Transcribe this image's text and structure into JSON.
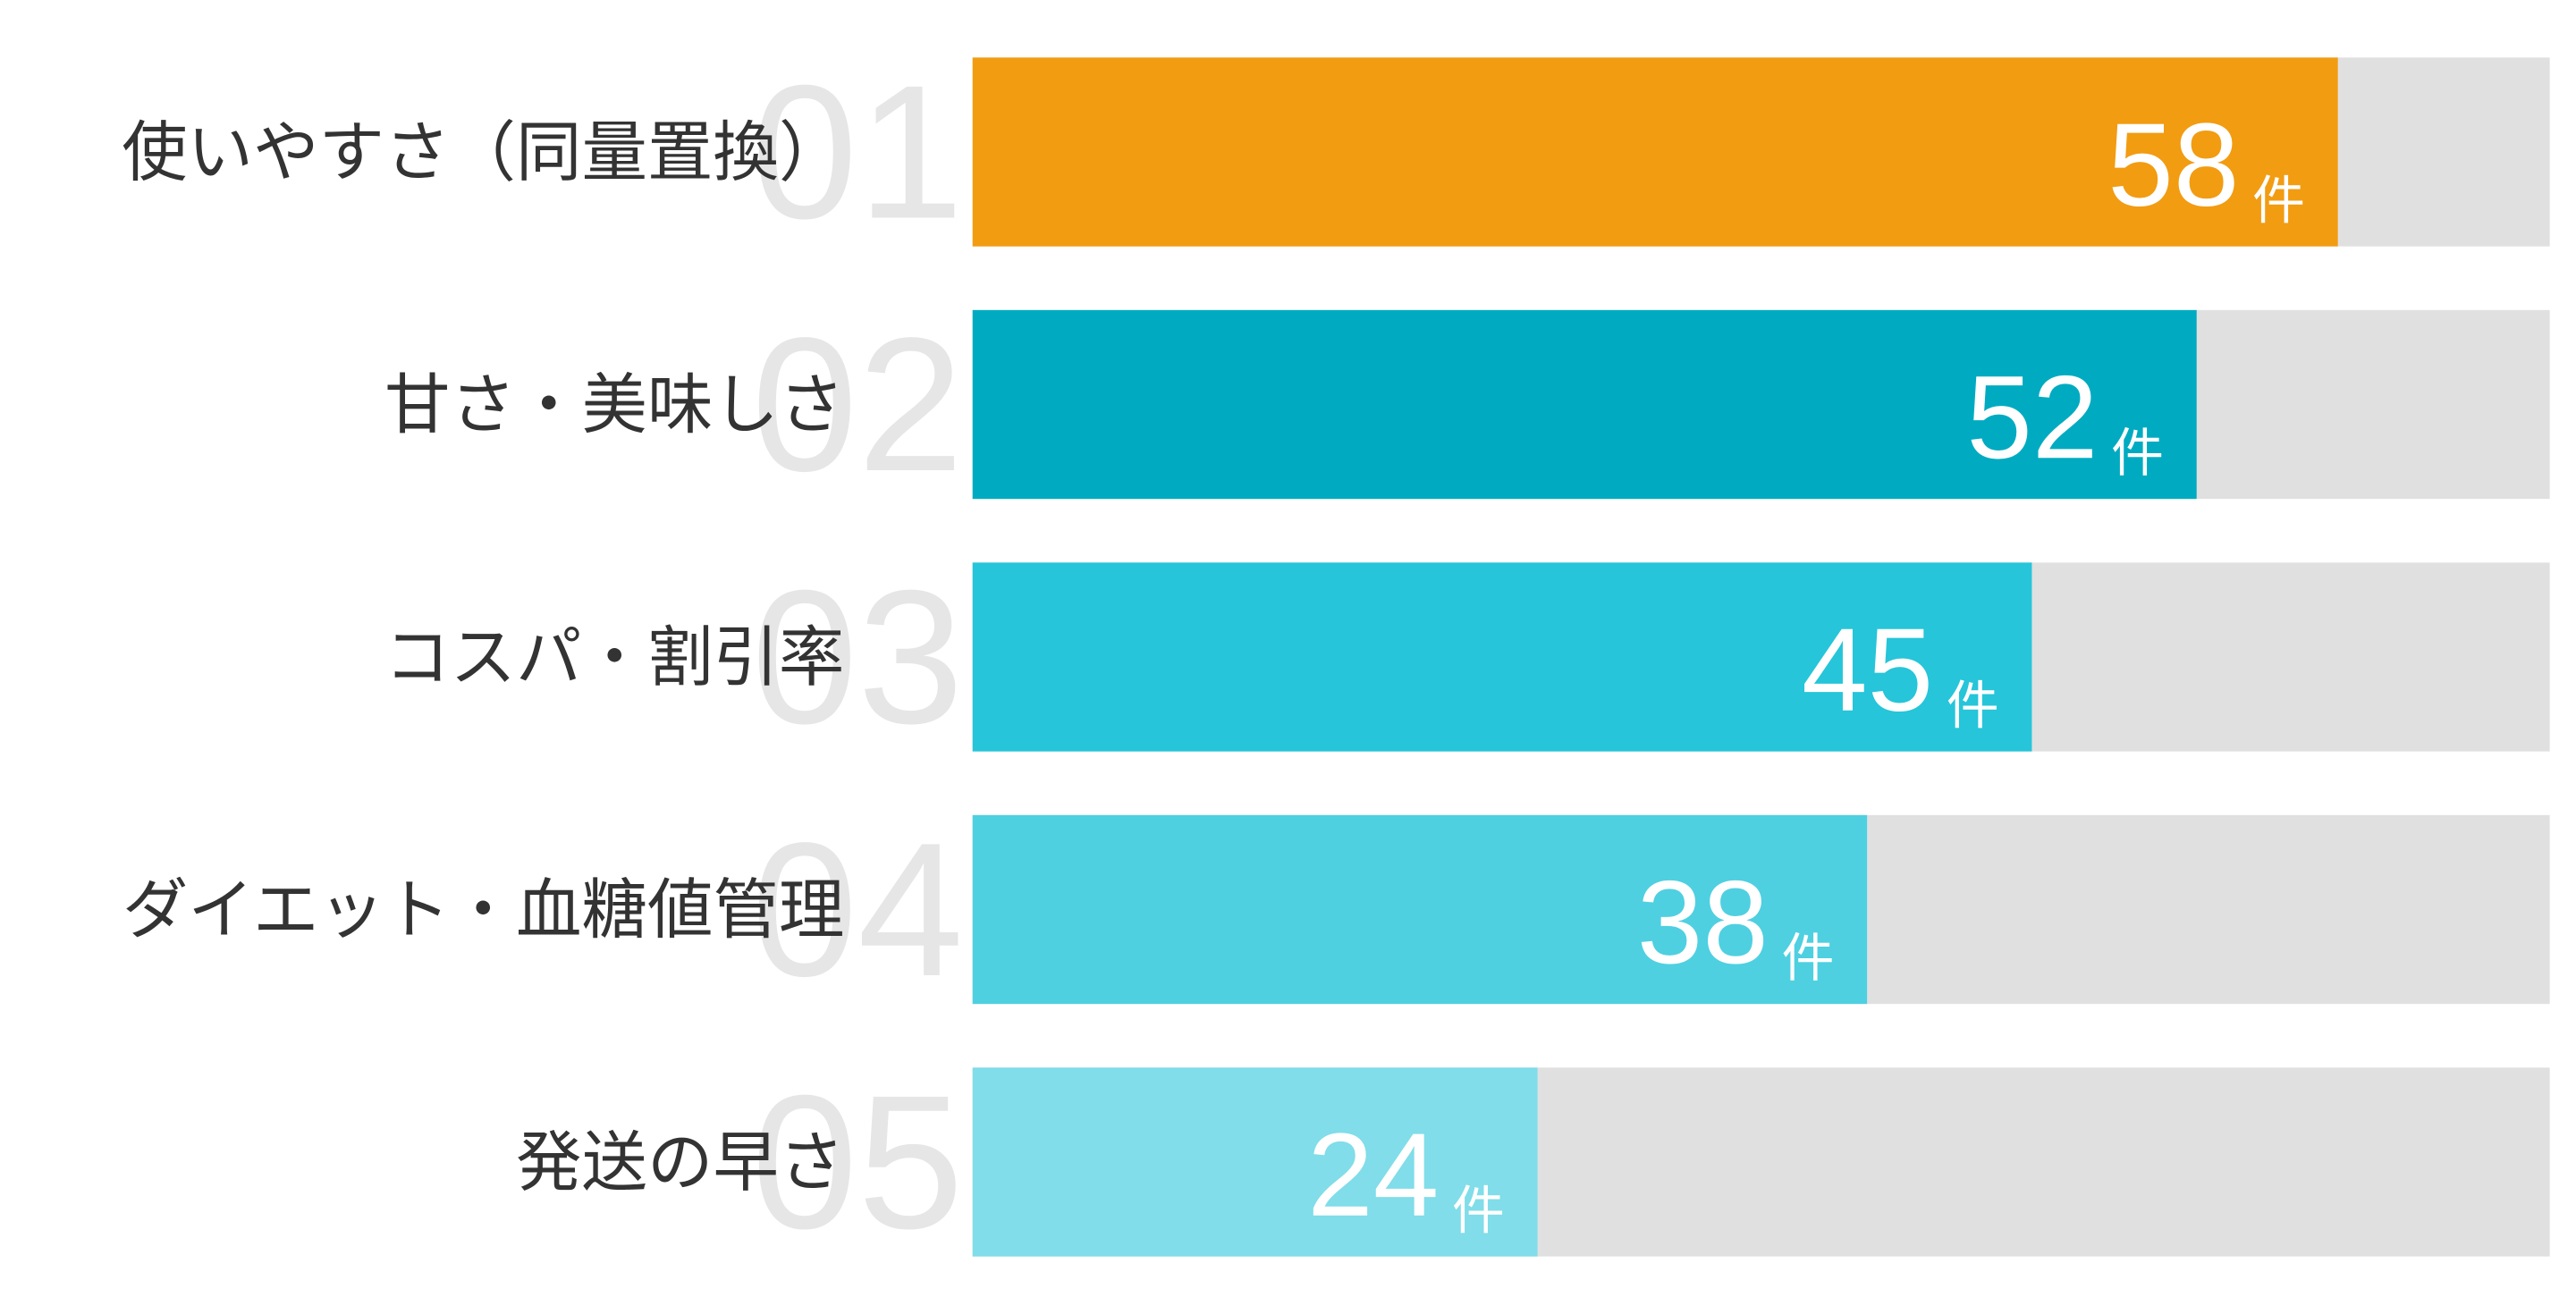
{
  "chart_data": {
    "type": "bar",
    "orientation": "horizontal",
    "categories": [
      "使いやすさ（同量置換）",
      "甘さ・美味しさ",
      "コスパ・割引率",
      "ダイエット・血糖値管理",
      "発送の早さ"
    ],
    "ranks": [
      "01",
      "02",
      "03",
      "04",
      "05"
    ],
    "values": [
      58,
      52,
      45,
      38,
      24
    ],
    "unit": "件",
    "colors": [
      "#f29c12",
      "#00abc1",
      "#26c5d9",
      "#4ed0e1",
      "#80dde9"
    ],
    "track_color": "#e0e0e0",
    "xlim": [
      0,
      67
    ]
  }
}
